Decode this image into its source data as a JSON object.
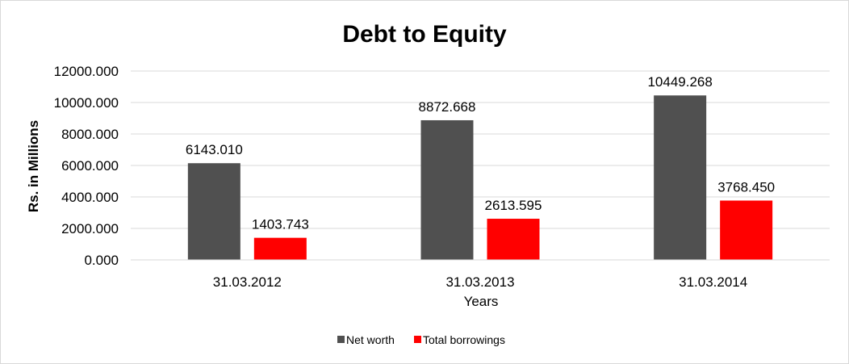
{
  "chart_data": {
    "type": "bar",
    "title": "Debt to Equity",
    "xlabel": "Years",
    "ylabel": "Rs. in Millions",
    "categories": [
      "31.03.2012",
      "31.03.2013",
      "31.03.2014"
    ],
    "series": [
      {
        "name": "Net worth",
        "color": "#505050",
        "values": [
          6143.01,
          8872.668,
          10449.268
        ],
        "labels": [
          "6143.010",
          "8872.668",
          "10449.268"
        ]
      },
      {
        "name": "Total borrowings",
        "color": "#ff0000",
        "values": [
          1403.743,
          2613.595,
          3768.45
        ],
        "labels": [
          "1403.743",
          "2613.595",
          "3768.450"
        ]
      }
    ],
    "ylim": [
      0,
      12000
    ],
    "yticks": [
      0,
      2000,
      4000,
      6000,
      8000,
      10000,
      12000
    ],
    "ytick_labels": [
      "0.000",
      "2000.000",
      "4000.000",
      "6000.000",
      "8000.000",
      "10000.000",
      "12000.000"
    ],
    "grid": true,
    "legend_position": "bottom"
  }
}
